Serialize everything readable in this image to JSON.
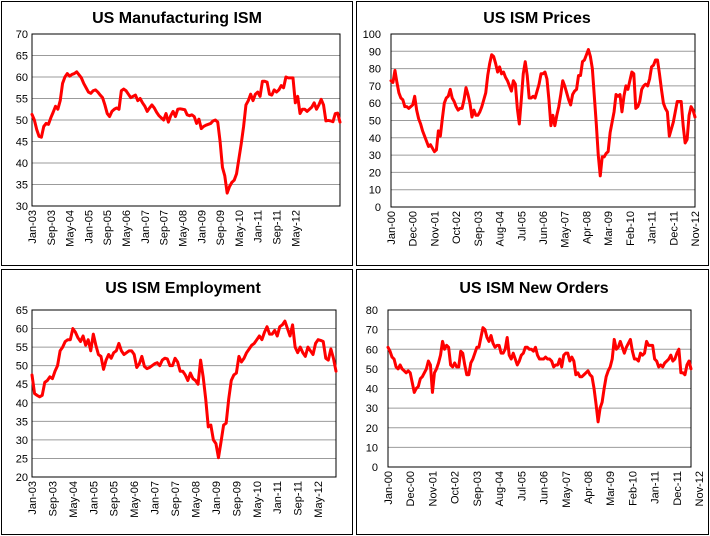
{
  "chart_data": [
    {
      "id": "manufacturing",
      "type": "line",
      "title": "US Manufacturing ISM",
      "xlabel": "",
      "ylabel": "",
      "ylim": [
        30,
        70
      ],
      "yticks": [
        30,
        35,
        40,
        45,
        50,
        55,
        60,
        65,
        70
      ],
      "grid": true,
      "legend": "none",
      "x_start": "Jan-03",
      "x_end": "Nov-12",
      "xtick_labels": [
        "Jan-03",
        "Sep-03",
        "May-04",
        "Jan-05",
        "Sep-05",
        "May-06",
        "Jan-07",
        "Sep-07",
        "May-08",
        "Jan-09",
        "Sep-09",
        "May-10",
        "Jan-11",
        "Sep-11",
        "May-12"
      ],
      "xtick_step_months": 8,
      "series": [
        {
          "name": "US Manufacturing ISM",
          "color": "#ff0000",
          "values": [
            51.3,
            50.0,
            47.8,
            46.2,
            46.0,
            48.5,
            49.2,
            49.0,
            50.5,
            51.8,
            53.2,
            52.5,
            54.5,
            58.5,
            60.0,
            60.8,
            60.2,
            60.6,
            60.8,
            61.2,
            60.5,
            59.8,
            58.5,
            57.5,
            56.5,
            56.2,
            56.8,
            57.0,
            56.5,
            55.8,
            55.2,
            53.5,
            51.5,
            50.8,
            52.0,
            52.5,
            52.8,
            52.5,
            56.8,
            57.2,
            56.8,
            56.0,
            55.2,
            55.5,
            55.8,
            54.5,
            55.0,
            54.0,
            53.2,
            52.0,
            52.8,
            53.5,
            52.8,
            51.8,
            51.0,
            50.5,
            50.0,
            51.5,
            49.5,
            51.0,
            52.0,
            50.8,
            52.5,
            52.6,
            52.5,
            52.4,
            51.2,
            51.0,
            51.2,
            50.8,
            49.2,
            50.2,
            48.0,
            48.5,
            48.8,
            49.0,
            49.2,
            49.8,
            50.0,
            49.5,
            45.0,
            39.0,
            37.0,
            33.0,
            34.5,
            35.5,
            36.0,
            37.5,
            41.0,
            44.5,
            48.5,
            53.5,
            54.5,
            56.0,
            54.5,
            56.0,
            56.5,
            55.5,
            59.0,
            59.0,
            58.8,
            56.0,
            55.8,
            57.0,
            56.5,
            57.0,
            58.0,
            57.5,
            60.0,
            59.8,
            59.8,
            59.8,
            54.0,
            55.5,
            51.5,
            52.5,
            52.5,
            52.0,
            52.5,
            53.0,
            54.0,
            52.5,
            53.5,
            54.8,
            53.5,
            49.8,
            49.9,
            49.8,
            49.6,
            51.5,
            51.6,
            49.5
          ]
        }
      ]
    },
    {
      "id": "prices",
      "type": "line",
      "title": "US ISM Prices",
      "xlabel": "",
      "ylabel": "",
      "ylim": [
        0,
        100
      ],
      "yticks": [
        0,
        10,
        20,
        30,
        40,
        50,
        60,
        70,
        80,
        90,
        100
      ],
      "grid": true,
      "legend": "none",
      "x_start": "Jan-00",
      "x_end": "Nov-12",
      "xtick_labels": [
        "Jan-00",
        "Dec-00",
        "Nov-01",
        "Oct-02",
        "Sep-03",
        "Aug-04",
        "Jul-05",
        "Jun-06",
        "May-07",
        "Apr-08",
        "Mar-09",
        "Feb-10",
        "Jan-11",
        "Dec-11",
        "Nov-12"
      ],
      "xtick_step_months": 11,
      "series": [
        {
          "name": "US ISM Prices",
          "color": "#ff0000",
          "values": [
            73,
            72,
            79,
            72,
            66,
            63,
            62,
            58,
            58,
            57,
            58,
            59,
            64,
            56,
            51,
            48,
            44,
            41,
            38,
            35,
            36,
            34,
            32,
            33,
            44,
            41,
            51,
            60,
            63,
            64,
            68,
            63,
            61,
            58,
            56,
            57,
            57,
            62,
            69,
            65,
            60,
            52,
            56,
            53,
            53,
            55,
            58,
            62,
            66,
            76,
            83,
            88,
            87,
            83,
            78,
            81,
            77,
            78,
            75,
            73,
            70,
            67,
            73,
            71,
            57,
            48,
            62,
            77,
            84,
            76,
            63,
            63,
            64,
            63,
            67,
            71,
            77,
            77,
            78,
            74,
            62,
            47,
            53,
            47,
            53,
            58,
            65,
            73,
            70,
            66,
            62,
            59,
            65,
            67,
            68,
            76,
            76,
            84,
            85,
            88,
            91,
            87,
            80,
            64,
            48,
            30,
            18,
            29,
            29,
            31,
            32,
            43,
            49,
            55,
            65,
            64,
            65,
            55,
            64,
            70,
            68,
            73,
            78,
            77,
            57,
            58,
            61,
            68,
            70,
            71,
            70,
            74,
            81,
            82,
            85,
            85,
            77,
            68,
            60,
            57,
            55,
            41,
            45,
            49,
            55,
            61,
            61,
            61,
            47,
            37,
            39,
            53,
            58,
            56,
            52
          ]
        }
      ]
    },
    {
      "id": "employment",
      "type": "line",
      "title": "US ISM Employment",
      "xlabel": "",
      "ylabel": "",
      "ylim": [
        20,
        65
      ],
      "yticks": [
        20,
        25,
        30,
        35,
        40,
        45,
        50,
        55,
        60,
        65
      ],
      "grid": true,
      "legend": "none",
      "x_start": "Jan-03",
      "x_end": "Nov-12",
      "xtick_labels": [
        "Jan-03",
        "Sep-03",
        "May-04",
        "Jan-05",
        "Sep-05",
        "May-06",
        "Jan-07",
        "Sep-07",
        "May-08",
        "Jan-09",
        "Sep-09",
        "May-10",
        "Jan-11",
        "Sep-11",
        "May-12"
      ],
      "xtick_step_months": 8,
      "series": [
        {
          "name": "US ISM Employment",
          "color": "#ff0000",
          "values": [
            47.5,
            42.5,
            42.0,
            41.6,
            42.0,
            45.5,
            46.0,
            47.0,
            46.5,
            48.5,
            50.0,
            54.0,
            55.0,
            56.5,
            57.0,
            57.0,
            60.0,
            59.0,
            57.5,
            56.5,
            58.0,
            55.5,
            57.0,
            54.0,
            58.5,
            55.5,
            53.0,
            52.5,
            49.0,
            51.5,
            53.0,
            52.0,
            53.5,
            54.0,
            56.0,
            54.0,
            53.0,
            53.5,
            54.0,
            54.0,
            53.0,
            49.5,
            50.5,
            52.5,
            49.8,
            49.2,
            49.5,
            50.0,
            50.5,
            50.8,
            50.0,
            51.5,
            52.0,
            51.8,
            50.0,
            50.0,
            52.0,
            51.0,
            48.5,
            48.5,
            47.5,
            46.0,
            48.0,
            46.5,
            46.0,
            45.0,
            51.5,
            47.0,
            41.0,
            33.5,
            34.0,
            30.0,
            29.0,
            25.2,
            29.5,
            34.0,
            34.5,
            41.0,
            46.0,
            47.5,
            48.0,
            52.5,
            51.0,
            52.0,
            53.5,
            54.5,
            55.5,
            56.0,
            57.0,
            58.0,
            57.0,
            59.0,
            60.5,
            58.5,
            58.5,
            59.5,
            58.0,
            60.5,
            61.0,
            62.0,
            60.0,
            58.0,
            61.0,
            55.0,
            53.5,
            55.0,
            53.5,
            52.5,
            55.0,
            54.0,
            53.0,
            56.0,
            57.0,
            56.8,
            56.5,
            52.0,
            51.5,
            54.5,
            52.0,
            48.5
          ]
        }
      ]
    },
    {
      "id": "new_orders",
      "type": "line",
      "title": "US ISM New Orders",
      "xlabel": "",
      "ylabel": "",
      "ylim": [
        0,
        80
      ],
      "yticks": [
        0,
        10,
        20,
        30,
        40,
        50,
        60,
        70,
        80
      ],
      "grid": true,
      "legend": "none",
      "x_start": "Jan-00",
      "x_end": "Nov-12",
      "xtick_labels": [
        "Jan-00",
        "Dec-00",
        "Nov-01",
        "Oct-02",
        "Sep-03",
        "Aug-04",
        "Jul-05",
        "Jun-06",
        "May-07",
        "Apr-08",
        "Mar-09",
        "Feb-10",
        "Jan-11",
        "Dec-11",
        "Nov-12"
      ],
      "xtick_step_months": 11,
      "series": [
        {
          "name": "US ISM New Orders",
          "color": "#ff0000",
          "values": [
            61,
            59,
            56,
            55,
            51,
            50,
            52,
            50,
            49,
            48,
            49,
            48,
            43,
            38,
            40,
            41,
            45,
            46,
            48,
            50,
            54,
            52,
            38,
            48,
            50,
            53,
            57,
            64,
            60,
            62,
            61,
            52,
            51,
            53,
            51,
            51,
            59,
            58,
            52,
            47,
            47,
            53,
            55,
            58,
            61,
            61,
            66,
            71,
            70,
            66,
            64,
            67,
            63,
            61,
            62,
            62,
            58,
            58,
            60,
            66,
            57,
            55,
            58,
            55,
            52,
            54,
            57,
            58,
            61,
            61,
            60,
            60,
            59,
            61,
            57,
            55,
            55,
            55,
            56,
            55,
            55,
            54,
            51,
            52,
            52,
            55,
            51,
            57,
            58,
            58,
            54,
            56,
            54,
            47,
            48,
            46,
            46,
            47,
            48,
            49,
            47,
            46,
            40,
            32,
            23,
            30,
            33,
            40,
            46,
            49,
            51,
            55,
            65,
            60,
            61,
            64,
            61,
            58,
            61,
            63,
            65,
            59,
            55,
            55,
            54,
            58,
            57,
            58,
            64,
            62,
            62,
            62,
            55,
            54,
            51,
            52,
            51,
            53,
            54,
            55,
            57,
            54,
            55,
            58,
            60,
            48,
            48,
            47,
            52,
            54,
            50
          ]
        }
      ]
    }
  ]
}
